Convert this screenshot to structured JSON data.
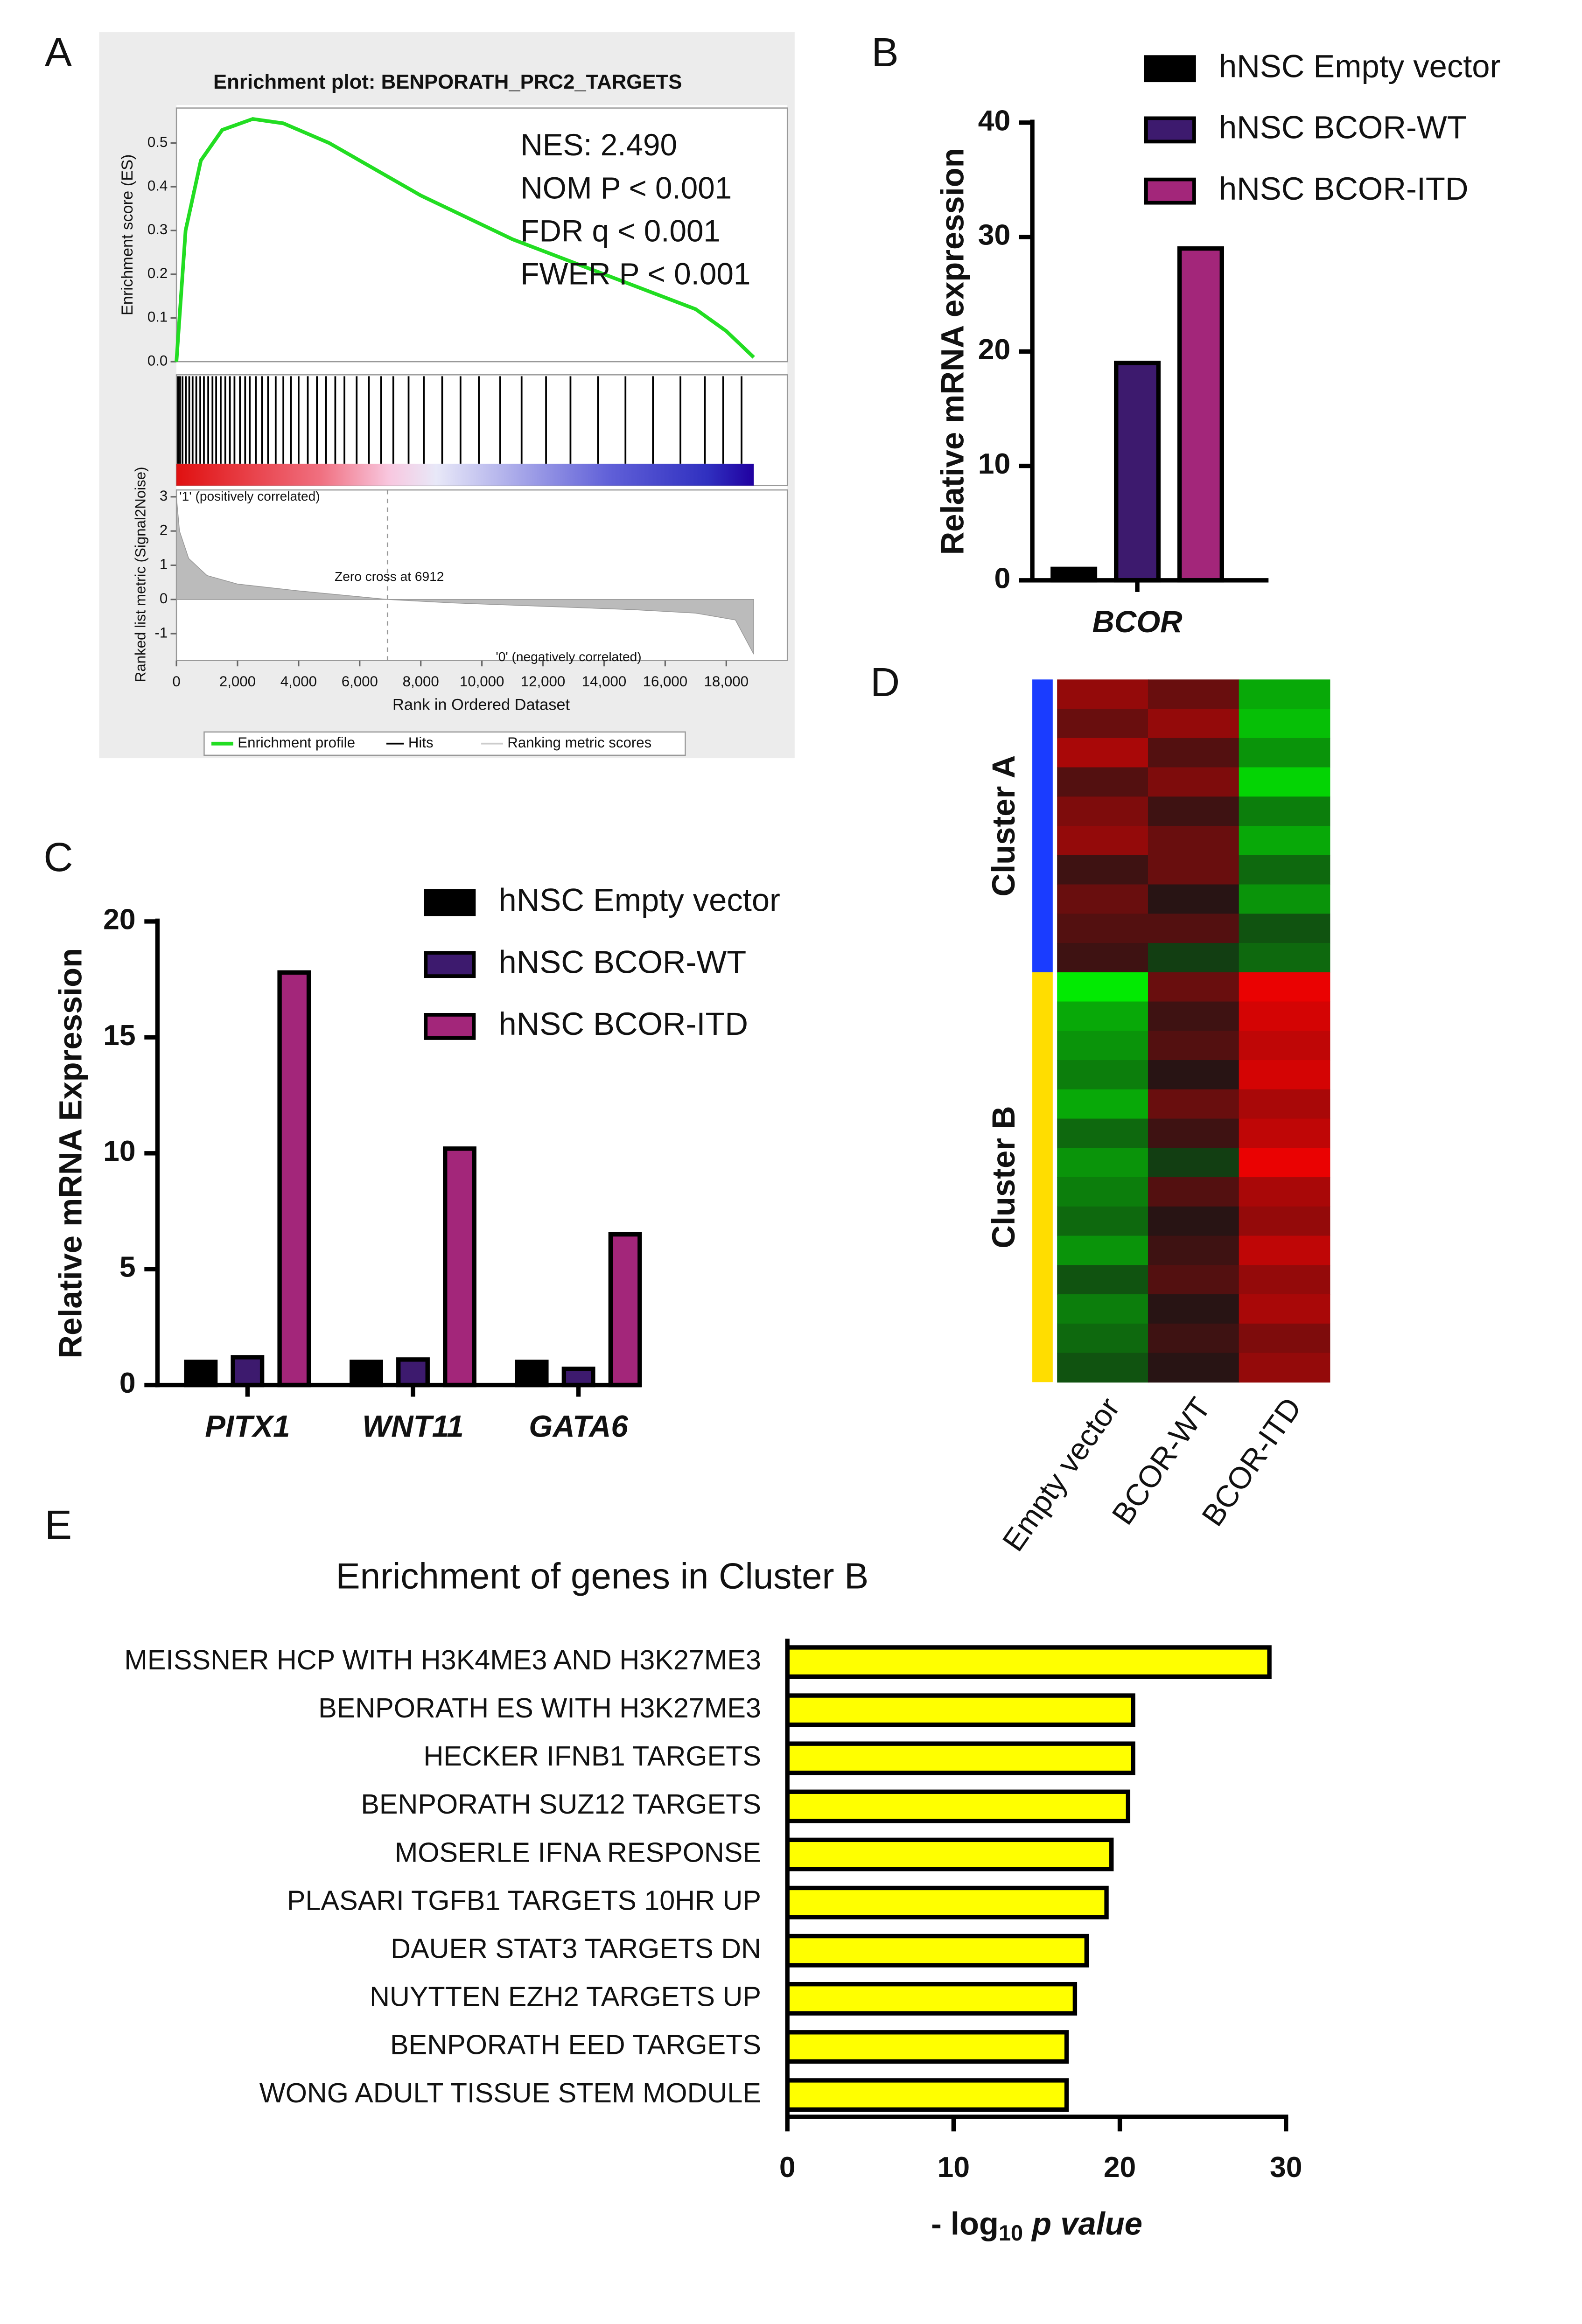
{
  "chart_data": [
    {
      "type": "gsea",
      "panel": "A",
      "title": "Enrichment plot: BENPORATH_PRC2_TARGETS",
      "ylabel": "Enrichment score (ES)",
      "y2label": "Ranked list metric (Signal2Noise)",
      "xlabel": "Rank in Ordered Dataset",
      "xlim": [
        0,
        20000
      ],
      "xticks": [
        0,
        {
          "value": 2000,
          "label": "2,000"
        },
        {
          "value": 4000,
          "label": "4,000"
        },
        {
          "value": 6000,
          "label": "6,000"
        },
        {
          "value": 8000,
          "label": "8,000"
        },
        {
          "value": 10000,
          "label": "10,000"
        },
        {
          "value": 12000,
          "label": "12,000"
        },
        {
          "value": 14000,
          "label": "14,000"
        },
        {
          "value": 16000,
          "label": "16,000"
        },
        {
          "value": 18000,
          "label": "18,000"
        }
      ],
      "ylim": [
        0,
        0.58
      ],
      "yticks": [
        {
          "value": 0,
          "label": "0.0"
        },
        0.1,
        0.2,
        0.3,
        0.4,
        0.5
      ],
      "y2lim": [
        -1.7,
        3.2
      ],
      "y2ticks": [
        -1,
        0,
        1,
        2,
        3
      ],
      "stats": [
        "NES: 2.490",
        "NOM P < 0.001",
        "FDR q < 0.001",
        "FWER P < 0.001"
      ],
      "notes": [
        "'1' (positively correlated)",
        "Zero cross at 6912",
        "'0' (negatively correlated)"
      ],
      "zero_cross": 6912,
      "series": [
        {
          "name": "Enrichment profile",
          "color": "#22dd22",
          "x": [
            0,
            300,
            800,
            1500,
            2500,
            3500,
            5000,
            6500,
            8000,
            9500,
            11000,
            12500,
            14000,
            15500,
            17000,
            18000,
            18900
          ],
          "values": [
            0,
            0.3,
            0.46,
            0.53,
            0.555,
            0.545,
            0.5,
            0.44,
            0.38,
            0.33,
            0.28,
            0.24,
            0.2,
            0.16,
            0.12,
            0.07,
            0.01
          ]
        },
        {
          "name": "Hits",
          "color": "#000000",
          "x": [
            50,
            120,
            200,
            310,
            420,
            530,
            650,
            780,
            900,
            1040,
            1180,
            1300,
            1450,
            1600,
            1750,
            1900,
            2080,
            2250,
            2400,
            2600,
            2800,
            3000,
            3250,
            3500,
            3750,
            4000,
            4300,
            4600,
            4900,
            5200,
            5500,
            5900,
            6300,
            6700,
            7100,
            7600,
            8100,
            8700,
            9300,
            9900,
            10600,
            11300,
            12100,
            12900,
            13800,
            14700,
            15600,
            16500,
            17300,
            17900,
            18500
          ]
        },
        {
          "name": "Ranking metric scores",
          "color": "#bbbbbb",
          "axis": "y2",
          "x": [
            0,
            100,
            400,
            1000,
            2000,
            4000,
            6912,
            9000,
            12000,
            15000,
            17000,
            18300,
            18900
          ],
          "values": [
            3.0,
            2.0,
            1.2,
            0.7,
            0.45,
            0.25,
            0,
            -0.1,
            -0.2,
            -0.3,
            -0.4,
            -0.6,
            -1.6
          ]
        }
      ]
    },
    {
      "type": "bar",
      "panel": "B",
      "ylabel": "Relative mRNA expression",
      "categories": [
        "BCOR"
      ],
      "ylim": [
        0,
        40
      ],
      "yticks": [
        0,
        10,
        20,
        30,
        40
      ],
      "series": [
        {
          "name": "hNSC Empty vector",
          "color": "#000000",
          "values": [
            1
          ]
        },
        {
          "name": "hNSC BCOR-WT",
          "color": "#3d1a6e",
          "values": [
            19
          ]
        },
        {
          "name": "hNSC BCOR-ITD",
          "color": "#a3267a",
          "values": [
            29
          ]
        }
      ]
    },
    {
      "type": "bar",
      "panel": "C",
      "ylabel": "Relative mRNA Expression",
      "categories": [
        "PITX1",
        "WNT11",
        "GATA6"
      ],
      "ylim": [
        0,
        20
      ],
      "yticks": [
        0,
        5,
        10,
        15,
        20
      ],
      "series": [
        {
          "name": "hNSC Empty vector",
          "color": "#000000",
          "values": [
            1,
            1,
            1
          ]
        },
        {
          "name": "hNSC BCOR-WT",
          "color": "#3d1a6e",
          "values": [
            1.2,
            1.1,
            0.7
          ]
        },
        {
          "name": "hNSC BCOR-ITD",
          "color": "#a3267a",
          "values": [
            17.8,
            10.2,
            6.5
          ]
        }
      ]
    },
    {
      "type": "heatmap",
      "panel": "D",
      "categories": [
        "Empty vector",
        "BCOR-WT",
        "BCOR-ITD"
      ],
      "clusters": [
        {
          "name": "Cluster A",
          "color": "#1a3cff",
          "values": [
            [
              0.5,
              0.3,
              -0.6
            ],
            [
              0.3,
              0.5,
              -0.7
            ],
            [
              0.6,
              0.2,
              -0.5
            ],
            [
              0.2,
              0.4,
              -0.8
            ],
            [
              0.4,
              0.1,
              -0.4
            ],
            [
              0.5,
              0.3,
              -0.6
            ],
            [
              0.1,
              0.3,
              -0.3
            ],
            [
              0.3,
              0.0,
              -0.5
            ],
            [
              0.2,
              0.2,
              -0.2
            ],
            [
              0.1,
              -0.1,
              -0.3
            ]
          ]
        },
        {
          "name": "Cluster B",
          "color": "#ffdd00",
          "values": [
            [
              -0.9,
              0.3,
              0.9
            ],
            [
              -0.6,
              0.1,
              0.8
            ],
            [
              -0.5,
              0.2,
              0.7
            ],
            [
              -0.4,
              0.0,
              0.8
            ],
            [
              -0.6,
              0.3,
              0.6
            ],
            [
              -0.3,
              0.1,
              0.7
            ],
            [
              -0.5,
              -0.1,
              0.9
            ],
            [
              -0.4,
              0.2,
              0.6
            ],
            [
              -0.3,
              0.0,
              0.5
            ],
            [
              -0.5,
              0.1,
              0.7
            ],
            [
              -0.2,
              0.2,
              0.5
            ],
            [
              -0.4,
              0.0,
              0.6
            ],
            [
              -0.3,
              0.1,
              0.4
            ],
            [
              -0.2,
              0.0,
              0.5
            ]
          ]
        }
      ]
    },
    {
      "type": "hbar",
      "panel": "E",
      "title": "Enrichment of genes in Cluster B",
      "categories": [
        "MEISSNER HCP WITH H3K4ME3 AND H3K27ME3",
        "BENPORATH ES WITH H3K27ME3",
        "HECKER IFNB1 TARGETS",
        "BENPORATH SUZ12 TARGETS",
        "MOSERLE IFNA RESPONSE",
        "PLASARI TGFB1 TARGETS 10HR UP",
        "DAUER STAT3 TARGETS DN",
        "NUYTTEN EZH2 TARGETS UP",
        "BENPORATH EED TARGETS",
        "WONG ADULT TISSUE STEM MODULE"
      ],
      "label_colors": [
        "#ff2020",
        "#ff2020",
        "#111111",
        "#ff2020",
        "#111111",
        "#111111",
        "#111111",
        "#ff2020",
        "#ff2020",
        "#111111"
      ],
      "values": [
        29,
        20.8,
        20.8,
        20.5,
        19.5,
        19.2,
        18,
        17.3,
        16.8,
        16.8
      ],
      "color": "#ffff00",
      "xlim": [
        0,
        30
      ],
      "xticks": [
        0,
        10,
        20,
        30
      ],
      "xlabel": [
        "- log",
        "10",
        " p value"
      ]
    }
  ]
}
